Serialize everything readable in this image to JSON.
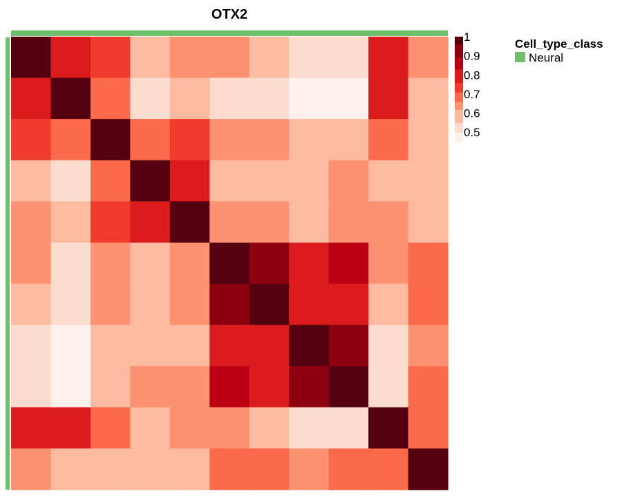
{
  "chart_data": {
    "type": "heatmap",
    "title": "OTX2",
    "rows": 11,
    "cols": 11,
    "values": [
      [
        1.0,
        0.8,
        0.73,
        0.6,
        0.64,
        0.64,
        0.6,
        0.53,
        0.53,
        0.8,
        0.64
      ],
      [
        0.8,
        1.0,
        0.69,
        0.53,
        0.6,
        0.53,
        0.53,
        0.48,
        0.48,
        0.8,
        0.6
      ],
      [
        0.73,
        0.69,
        1.0,
        0.69,
        0.73,
        0.64,
        0.64,
        0.6,
        0.6,
        0.69,
        0.6
      ],
      [
        0.6,
        0.53,
        0.69,
        1.0,
        0.8,
        0.6,
        0.6,
        0.6,
        0.64,
        0.6,
        0.6
      ],
      [
        0.64,
        0.6,
        0.73,
        0.8,
        1.0,
        0.64,
        0.64,
        0.6,
        0.64,
        0.64,
        0.6
      ],
      [
        0.64,
        0.53,
        0.64,
        0.6,
        0.64,
        1.0,
        0.93,
        0.8,
        0.86,
        0.64,
        0.69
      ],
      [
        0.6,
        0.53,
        0.64,
        0.6,
        0.64,
        0.93,
        1.0,
        0.8,
        0.8,
        0.6,
        0.69
      ],
      [
        0.53,
        0.48,
        0.6,
        0.6,
        0.6,
        0.8,
        0.8,
        1.0,
        0.93,
        0.53,
        0.64
      ],
      [
        0.53,
        0.48,
        0.6,
        0.64,
        0.64,
        0.86,
        0.8,
        0.93,
        1.0,
        0.53,
        0.69
      ],
      [
        0.8,
        0.8,
        0.69,
        0.6,
        0.64,
        0.64,
        0.6,
        0.53,
        0.53,
        1.0,
        0.69
      ],
      [
        0.64,
        0.6,
        0.6,
        0.6,
        0.6,
        0.69,
        0.69,
        0.64,
        0.69,
        0.69,
        1.0
      ]
    ],
    "colorscale": {
      "range": [
        0.45,
        1.0
      ],
      "ticks": [
        "1",
        "0.9",
        "0.8",
        "0.7",
        "0.6",
        "0.5"
      ],
      "tick_values": [
        1.0,
        0.9,
        0.8,
        0.7,
        0.6,
        0.5
      ],
      "bins": [
        {
          "min": 0.45,
          "max": 0.5,
          "color": "#fff1ec"
        },
        {
          "min": 0.5,
          "max": 0.55,
          "color": "#fcdccf"
        },
        {
          "min": 0.55,
          "max": 0.62,
          "color": "#fcbba1"
        },
        {
          "min": 0.62,
          "max": 0.66,
          "color": "#fc9272"
        },
        {
          "min": 0.66,
          "max": 0.71,
          "color": "#fb6a4a"
        },
        {
          "min": 0.71,
          "max": 0.76,
          "color": "#ef3b2c"
        },
        {
          "min": 0.76,
          "max": 0.83,
          "color": "#db1b1c"
        },
        {
          "min": 0.83,
          "max": 0.89,
          "color": "#bb0014"
        },
        {
          "min": 0.89,
          "max": 0.96,
          "color": "#8d000f"
        },
        {
          "min": 0.96,
          "max": 1.01,
          "color": "#540010"
        }
      ]
    },
    "annotation": {
      "class_label": "Neural",
      "color": "#6fc06b"
    },
    "legend": {
      "title": "Cell_type_class",
      "entries": [
        {
          "label": "Neural",
          "color": "#6fc06b"
        }
      ],
      "placement": "top-right"
    }
  }
}
